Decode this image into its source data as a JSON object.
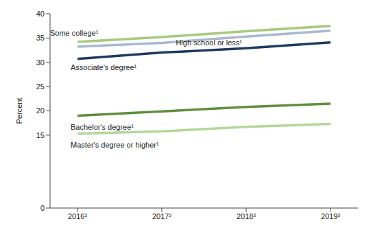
{
  "chart_data": {
    "type": "line",
    "categories": [
      "2016²",
      "2017²",
      "2018²",
      "2019²"
    ],
    "ylabel": "Percent",
    "ylim": [
      0,
      40
    ],
    "yticks": [
      0,
      15,
      20,
      25,
      30,
      35,
      40
    ],
    "grid": false,
    "series": [
      {
        "name": "Some college¹",
        "color": "#a6ca7c",
        "values": [
          34.2,
          35.2,
          36.4,
          37.5
        ]
      },
      {
        "name": "High school or less¹",
        "color": "#a9b9cd",
        "values": [
          33.2,
          34.0,
          35.3,
          36.5
        ]
      },
      {
        "name": "Associate's degree¹",
        "color": "#1c3b5e",
        "values": [
          30.7,
          32.0,
          32.9,
          34.1
        ]
      },
      {
        "name": "Bachelor's degree¹",
        "color": "#5f8f3e",
        "values": [
          19.0,
          19.9,
          20.8,
          21.5
        ]
      },
      {
        "name": "Master's degree or higher¹",
        "color": "#b3d69a",
        "values": [
          15.3,
          15.8,
          16.7,
          17.3
        ]
      }
    ]
  }
}
